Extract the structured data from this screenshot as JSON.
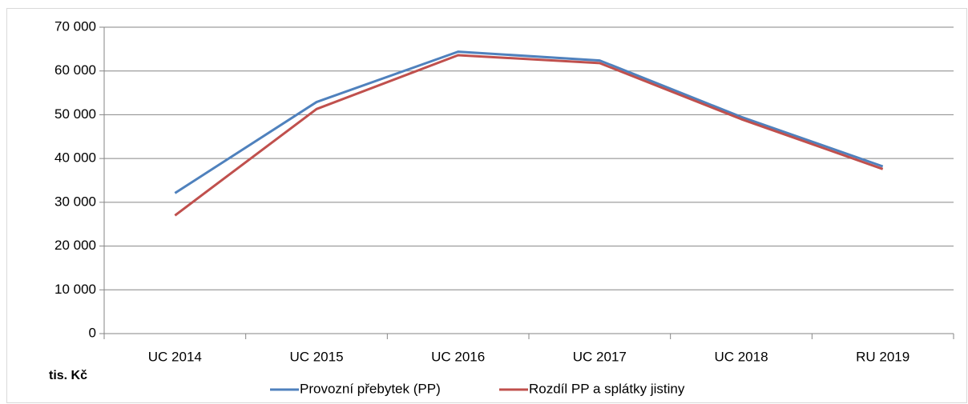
{
  "chart_data": {
    "type": "line",
    "categories": [
      "UC 2014",
      "UC 2015",
      "UC 2016",
      "UC 2017",
      "UC 2018",
      "RU 2019"
    ],
    "series": [
      {
        "name": "Provozní přebytek (PP)",
        "color": "#4f81bd",
        "values": [
          32100,
          52900,
          64400,
          62400,
          49500,
          38200
        ]
      },
      {
        "name": "Rozdíl PP a splátky jistiny",
        "color": "#c0504d",
        "values": [
          27000,
          51300,
          63600,
          61800,
          49000,
          37600
        ]
      }
    ],
    "ylabel": "tis. Kč",
    "ylim": [
      0,
      70000
    ],
    "yticks": [
      0,
      {
        "value": 10000,
        "label": "10 000"
      },
      {
        "value": 20000,
        "label": "20 000"
      },
      {
        "value": 30000,
        "label": "30 000"
      },
      {
        "value": 40000,
        "label": "40 000"
      },
      {
        "value": 50000,
        "label": "50 000"
      },
      {
        "value": 60000,
        "label": "60 000"
      },
      {
        "value": 70000,
        "label": "70 000"
      }
    ],
    "grid": true,
    "legend": "bottom"
  }
}
